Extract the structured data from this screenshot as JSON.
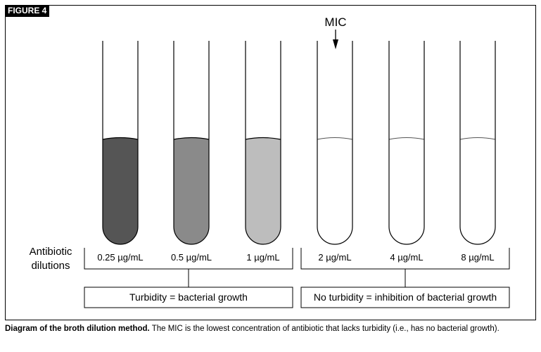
{
  "figure": {
    "label": "FIGURE 4",
    "mic_label": "MIC",
    "row_label_line1": "Antibiotic",
    "row_label_line2": "dilutions"
  },
  "tubes": [
    {
      "concentration": "0.25 µg/mL",
      "fill": "#555555",
      "turbid": true
    },
    {
      "concentration": "0.5 µg/mL",
      "fill": "#8a8a8a",
      "turbid": true
    },
    {
      "concentration": "1 µg/mL",
      "fill": "#bdbdbd",
      "turbid": true
    },
    {
      "concentration": "2 µg/mL",
      "fill": "#ffffff",
      "turbid": false
    },
    {
      "concentration": "4 µg/mL",
      "fill": "#ffffff",
      "turbid": false
    },
    {
      "concentration": "8 µg/mL",
      "fill": "#ffffff",
      "turbid": false
    }
  ],
  "groups": {
    "turbid": "Turbidity = bacterial growth",
    "clear": "No turbidity = inhibition of bacterial growth"
  },
  "caption": {
    "bold": "Diagram of the broth dilution method.",
    "text": " The MIC is the lowest concentration of antibiotic that lacks turbidity (i.e., has no bacterial growth)."
  }
}
